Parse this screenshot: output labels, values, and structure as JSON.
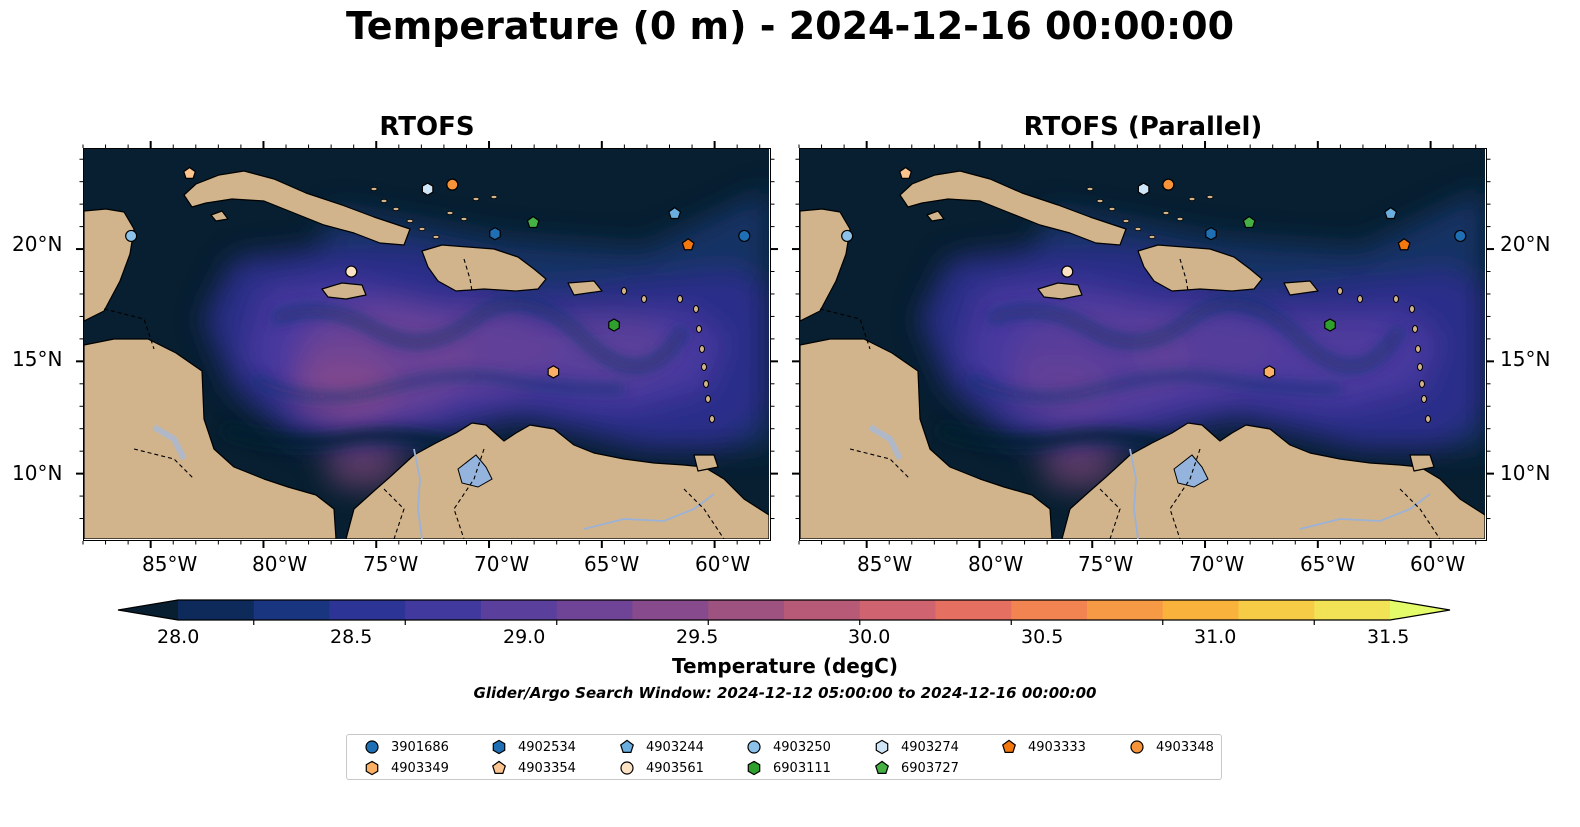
{
  "title": "Temperature (0 m) - 2024-12-16 00:00:00",
  "panels": [
    {
      "id": "left",
      "title": "RTOFS"
    },
    {
      "id": "right",
      "title": "RTOFS (Parallel)"
    }
  ],
  "map": {
    "lon_range": [
      -88,
      -57.5
    ],
    "lat_range": [
      7,
      24.5
    ],
    "lon_ticks": [
      "85°W",
      "80°W",
      "75°W",
      "70°W",
      "65°W",
      "60°W"
    ],
    "lat_ticks": [
      "20°N",
      "15°N",
      "10°N"
    ],
    "colors": {
      "ocean_dark": "#071f30",
      "ocean_blue": "#14336a",
      "ocean_indigo": "#2c2f8c",
      "ocean_violet": "#493aa0",
      "ocean_purple": "#6b4496",
      "ocean_warm": "#8f4b86",
      "land": "#d1b48b",
      "lake": "#95b4dd",
      "river": "#9bb2d8",
      "coast": "#000000"
    }
  },
  "colorbar": {
    "min": 27.75,
    "max": 31.75,
    "ticks": [
      "28.0",
      "28.5",
      "29.0",
      "29.5",
      "30.0",
      "30.5",
      "31.0",
      "31.5"
    ],
    "tick_values": [
      28.0,
      28.5,
      29.0,
      29.5,
      30.0,
      30.5,
      31.0,
      31.5
    ],
    "colors": [
      "#071f30",
      "#0d2a5a",
      "#1a3580",
      "#2c3595",
      "#41399e",
      "#5b3f9c",
      "#6f4496",
      "#874a8c",
      "#9d527f",
      "#b65a78",
      "#cf6470",
      "#e57061",
      "#f28451",
      "#f79a45",
      "#f9b33d",
      "#f6cc47",
      "#f2e255",
      "#e4fb6a"
    ],
    "label": "Temperature (degC)"
  },
  "footnote": "Glider/Argo Search Window: 2024-12-12 05:00:00 to 2024-12-16 00:00:00",
  "markers": [
    {
      "id": "3901686",
      "shape": "circle",
      "color": "#1f6fb4",
      "lon": -58.6,
      "lat": 20.6
    },
    {
      "id": "4902534",
      "shape": "hexagon",
      "color": "#1f6fb4",
      "lon": -69.7,
      "lat": 20.7
    },
    {
      "id": "4903244",
      "shape": "pentagon",
      "color": "#6aaee0",
      "lon": -61.7,
      "lat": 21.6
    },
    {
      "id": "4903250",
      "shape": "circle",
      "color": "#8cc2ea",
      "lon": -85.9,
      "lat": 20.6
    },
    {
      "id": "4903274",
      "shape": "hexagon",
      "color": "#cfe6f8",
      "lon": -72.7,
      "lat": 22.7
    },
    {
      "id": "4903333",
      "shape": "pentagon",
      "color": "#f4780e",
      "lon": -61.1,
      "lat": 20.2
    },
    {
      "id": "4903348",
      "shape": "circle",
      "color": "#f79338",
      "lon": -71.6,
      "lat": 22.9
    },
    {
      "id": "4903349",
      "shape": "hexagon",
      "color": "#fbb066",
      "lon": -67.1,
      "lat": 14.5
    },
    {
      "id": "4903354",
      "shape": "pentagon",
      "color": "#fcc58f",
      "lon": -83.3,
      "lat": 23.4
    },
    {
      "id": "4903561",
      "shape": "circle",
      "color": "#fde2c4",
      "lon": -76.1,
      "lat": 19.0
    },
    {
      "id": "6903111",
      "shape": "hexagon",
      "color": "#2fa02e",
      "lon": -64.4,
      "lat": 16.6
    },
    {
      "id": "6903727",
      "shape": "pentagon",
      "color": "#45b145",
      "lon": -68.0,
      "lat": 21.2
    }
  ],
  "legend": {
    "items": [
      {
        "label": "3901686",
        "shape": "circle",
        "color": "#1f6fb4"
      },
      {
        "label": "4902534",
        "shape": "hexagon",
        "color": "#1f6fb4"
      },
      {
        "label": "4903244",
        "shape": "pentagon",
        "color": "#6aaee0"
      },
      {
        "label": "4903250",
        "shape": "circle",
        "color": "#8cc2ea"
      },
      {
        "label": "4903274",
        "shape": "hexagon",
        "color": "#cfe6f8"
      },
      {
        "label": "4903333",
        "shape": "pentagon",
        "color": "#f4780e"
      },
      {
        "label": "4903348",
        "shape": "circle",
        "color": "#f79338"
      },
      {
        "label": "4903349",
        "shape": "hexagon",
        "color": "#fbb066"
      },
      {
        "label": "4903354",
        "shape": "pentagon",
        "color": "#fcc58f"
      },
      {
        "label": "4903561",
        "shape": "circle",
        "color": "#fde2c4"
      },
      {
        "label": "6903111",
        "shape": "hexagon",
        "color": "#2fa02e"
      },
      {
        "label": "6903727",
        "shape": "pentagon",
        "color": "#45b145"
      }
    ]
  }
}
